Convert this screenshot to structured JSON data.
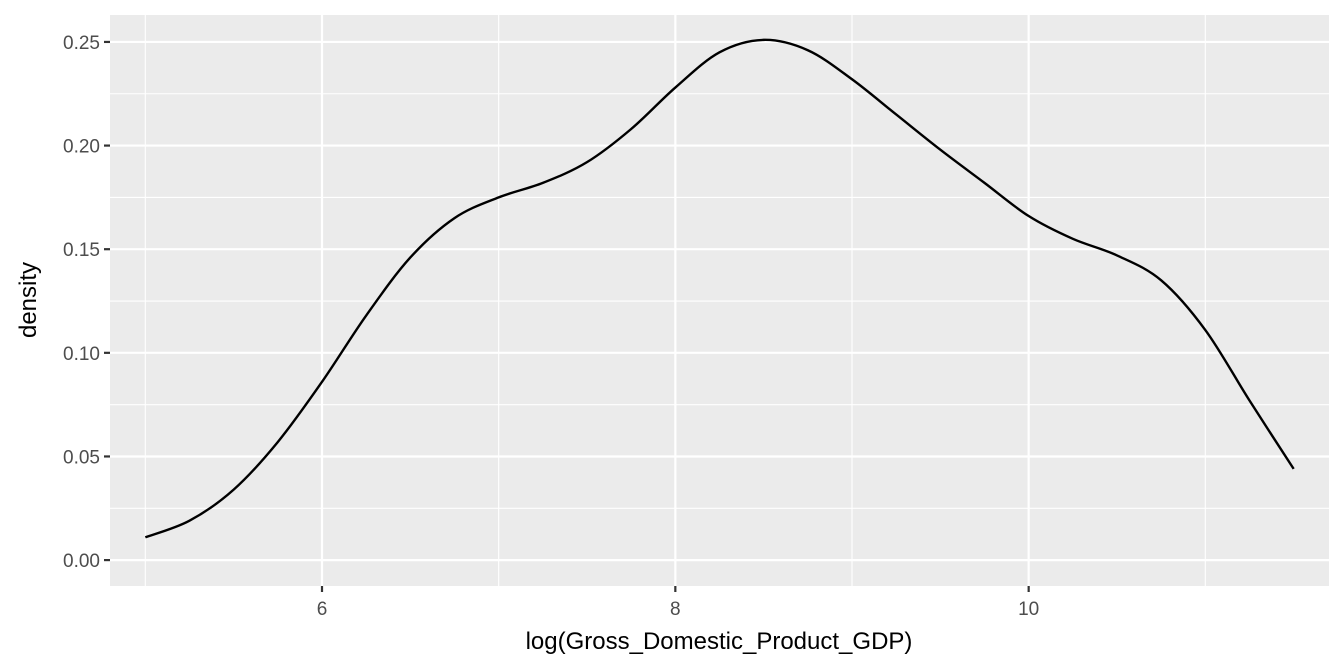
{
  "chart_data": {
    "type": "line",
    "xlabel": "log(Gross_Domestic_Product_GDP)",
    "ylabel": "density",
    "xlim": [
      4.8,
      11.7
    ],
    "ylim": [
      -0.0125,
      0.263
    ],
    "x_ticks": [
      6,
      8,
      10
    ],
    "x_tick_labels": [
      "6",
      "8",
      "10"
    ],
    "x_minor_ticks": [
      5,
      7,
      9,
      11
    ],
    "y_ticks": [
      0.0,
      0.05,
      0.1,
      0.15,
      0.2,
      0.25
    ],
    "y_tick_labels": [
      "0.00",
      "0.05",
      "0.10",
      "0.15",
      "0.20",
      "0.25"
    ],
    "y_minor_ticks": [
      0.025,
      0.075,
      0.125,
      0.175,
      0.225
    ],
    "grid": true,
    "series": [
      {
        "color": "#000000",
        "x": [
          5.0,
          5.25,
          5.5,
          5.75,
          6.0,
          6.25,
          6.5,
          6.75,
          7.0,
          7.25,
          7.5,
          7.75,
          8.0,
          8.25,
          8.5,
          8.75,
          9.0,
          9.25,
          9.5,
          9.75,
          10.0,
          10.25,
          10.5,
          10.75,
          11.0,
          11.25,
          11.5
        ],
        "y": [
          0.011,
          0.019,
          0.034,
          0.057,
          0.086,
          0.118,
          0.146,
          0.165,
          0.175,
          0.182,
          0.192,
          0.208,
          0.228,
          0.245,
          0.251,
          0.246,
          0.232,
          0.215,
          0.198,
          0.182,
          0.166,
          0.155,
          0.147,
          0.135,
          0.111,
          0.077,
          0.044
        ]
      }
    ]
  }
}
